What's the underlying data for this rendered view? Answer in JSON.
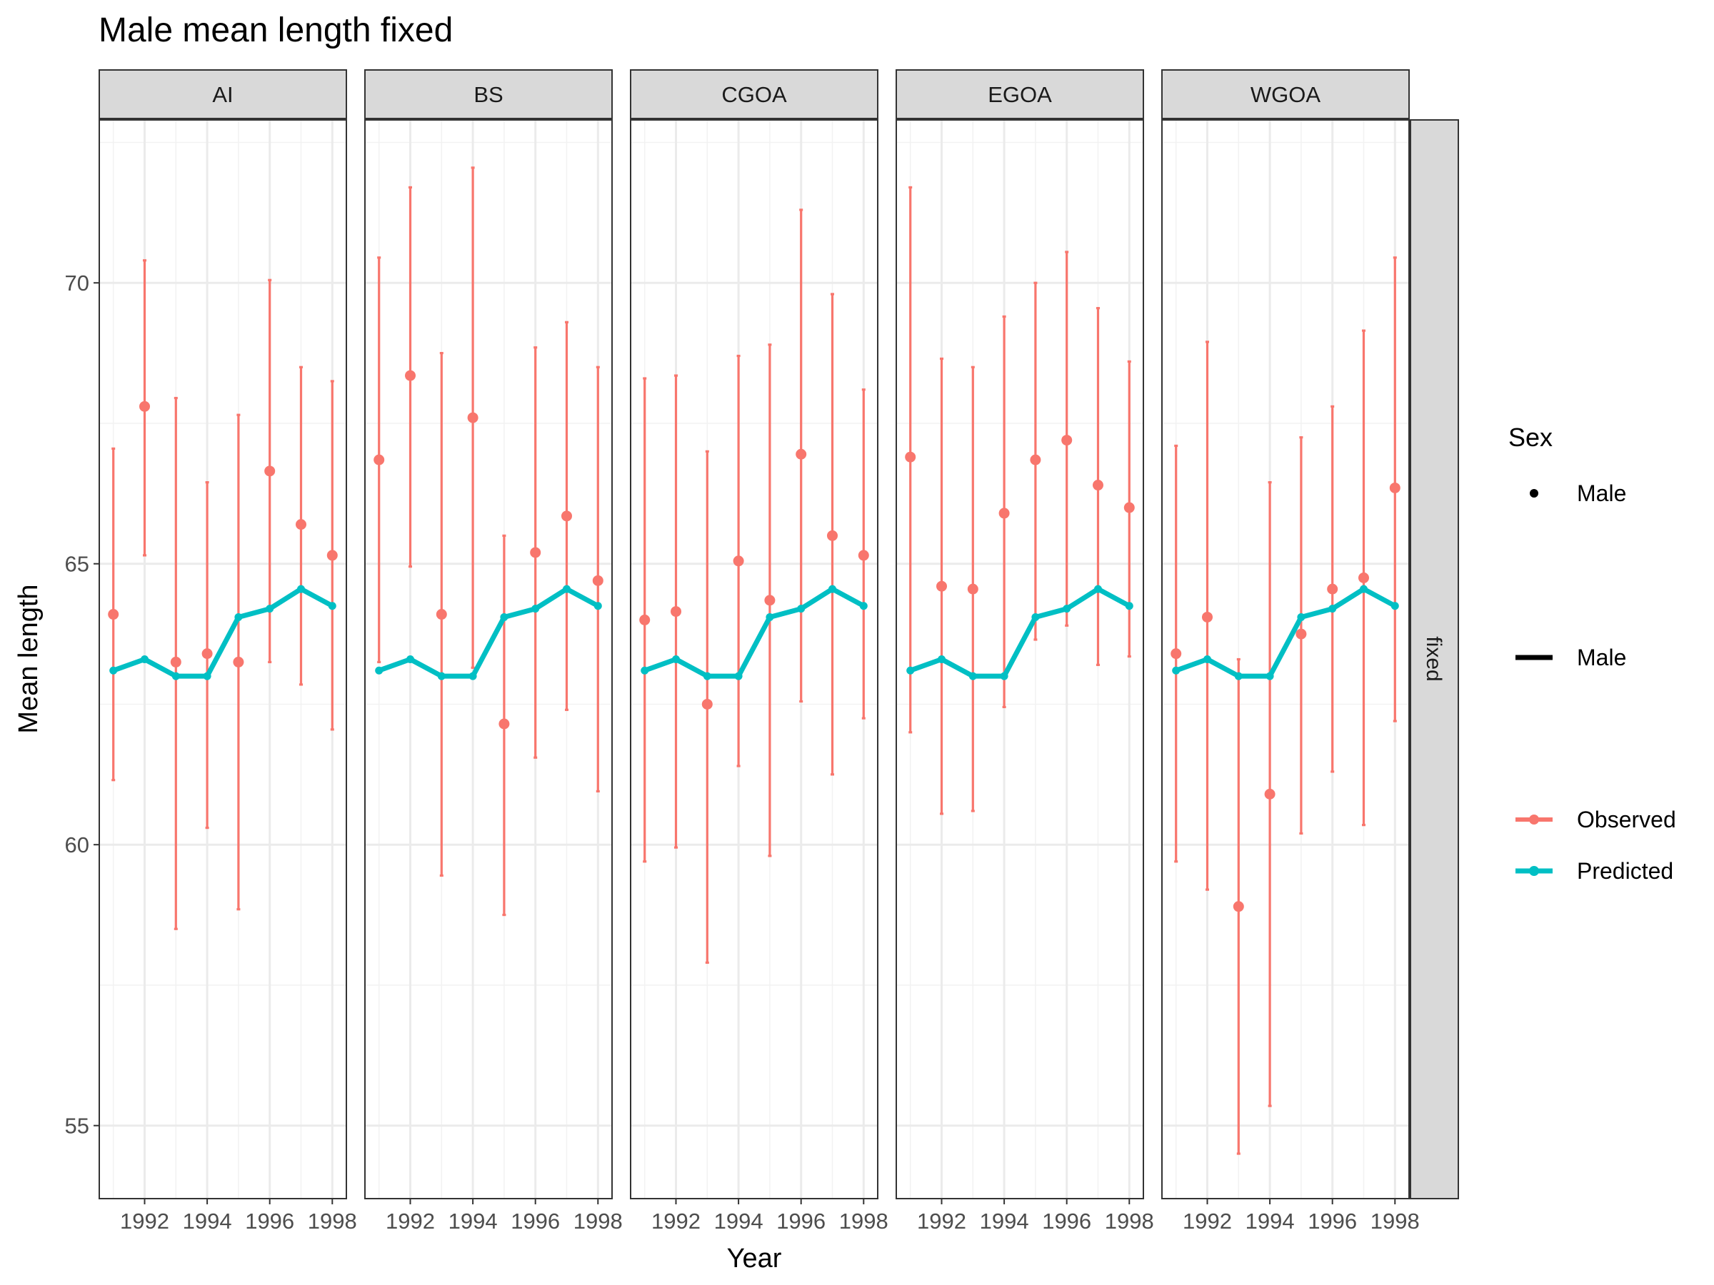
{
  "chart_data": {
    "type": "line",
    "title": "Male mean length fixed",
    "xlabel": "Year",
    "ylabel": "Mean length",
    "xlim": [
      1990.55,
      1998.45
    ],
    "ylim": [
      53.7,
      72.9
    ],
    "x_ticks": [
      1992,
      1994,
      1996,
      1998
    ],
    "y_ticks": [
      55,
      60,
      65,
      70
    ],
    "grid": true,
    "row_strip": "fixed",
    "colors": {
      "Observed": "#F8766D",
      "Predicted": "#00BFC4"
    },
    "legend": {
      "position": "right",
      "title": "Sex",
      "shape_label": "Male",
      "line_label": "Male",
      "entries": [
        "Observed",
        "Predicted"
      ]
    },
    "years": [
      1991,
      1992,
      1993,
      1994,
      1995,
      1996,
      1997,
      1998
    ],
    "predicted": [
      63.1,
      63.3,
      63.0,
      63.0,
      64.05,
      64.2,
      64.55,
      64.25
    ],
    "panels": [
      {
        "name": "AI",
        "observed": [
          64.1,
          67.8,
          63.25,
          63.4,
          63.25,
          66.65,
          65.7,
          65.15
        ],
        "lower": [
          61.15,
          65.15,
          58.5,
          60.3,
          58.85,
          63.25,
          62.85,
          62.05
        ],
        "upper": [
          67.05,
          70.4,
          67.95,
          66.45,
          67.65,
          70.05,
          68.5,
          68.25
        ]
      },
      {
        "name": "BS",
        "observed": [
          66.85,
          68.35,
          64.1,
          67.6,
          62.15,
          65.2,
          65.85,
          64.7
        ],
        "lower": [
          63.25,
          64.95,
          59.45,
          63.15,
          58.75,
          61.55,
          62.4,
          60.95
        ],
        "upper": [
          70.45,
          71.7,
          68.75,
          72.05,
          65.5,
          68.85,
          69.3,
          68.5
        ]
      },
      {
        "name": "CGOA",
        "observed": [
          64.0,
          64.15,
          62.5,
          65.05,
          64.35,
          66.95,
          65.5,
          65.15
        ],
        "lower": [
          59.7,
          59.95,
          57.9,
          61.4,
          59.8,
          62.55,
          61.25,
          62.25
        ],
        "upper": [
          68.3,
          68.35,
          67.0,
          68.7,
          68.9,
          71.3,
          69.8,
          68.1
        ]
      },
      {
        "name": "EGOA",
        "observed": [
          66.9,
          64.6,
          64.55,
          65.9,
          66.85,
          67.2,
          66.4,
          66.0
        ],
        "lower": [
          62.0,
          60.55,
          60.6,
          62.45,
          63.65,
          63.9,
          63.2,
          63.35
        ],
        "upper": [
          71.7,
          68.65,
          68.5,
          69.4,
          70.0,
          70.55,
          69.55,
          68.6
        ]
      },
      {
        "name": "WGOA",
        "observed": [
          63.4,
          64.05,
          58.9,
          60.9,
          63.75,
          64.55,
          64.75,
          66.35
        ],
        "lower": [
          59.7,
          59.2,
          54.5,
          55.35,
          60.2,
          61.3,
          60.35,
          62.2
        ],
        "upper": [
          67.1,
          68.95,
          63.3,
          66.45,
          67.25,
          67.8,
          69.15,
          70.45
        ]
      }
    ]
  }
}
